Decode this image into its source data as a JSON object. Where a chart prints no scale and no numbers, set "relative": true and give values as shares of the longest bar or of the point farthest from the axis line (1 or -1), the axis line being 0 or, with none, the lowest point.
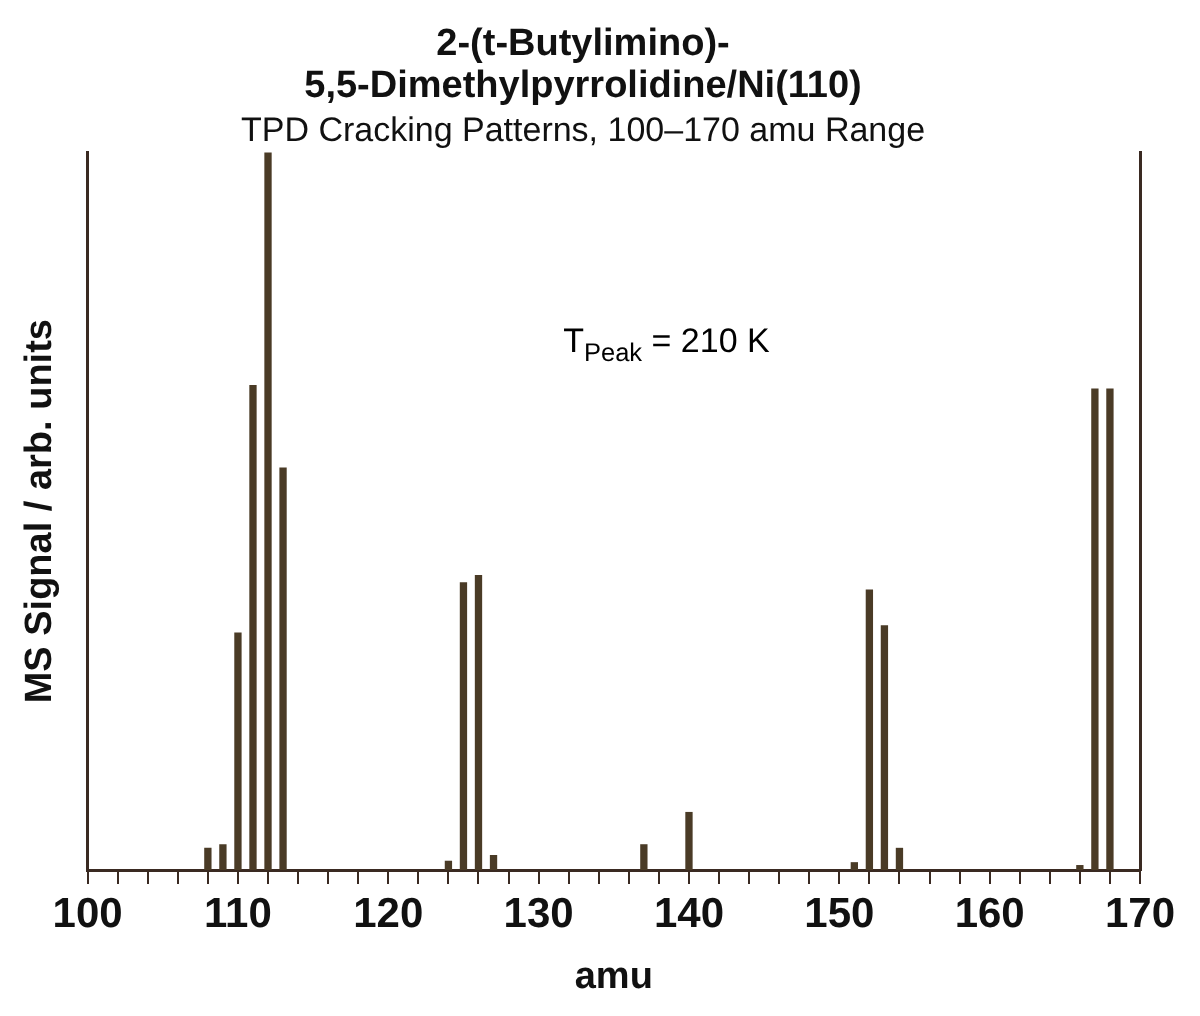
{
  "chart_data": {
    "type": "bar",
    "title": "2-(t-Butylimino)-\n5,5-Dimethylpyrrolidine/Ni(110)",
    "subtitle": "TPD Cracking Patterns, 100–170 amu Range",
    "xlabel": "amu",
    "ylabel": "MS Signal / arb. units",
    "annotations": [
      "T$_{Peak}$ = 210 K"
    ],
    "relative": true,
    "x": [
      108,
      109,
      110,
      111,
      112,
      113,
      124,
      125,
      126,
      127,
      137,
      140,
      151,
      152,
      153,
      154,
      166,
      167,
      168
    ],
    "values": [
      0.03,
      0.035,
      0.33,
      0.675,
      1,
      0.56,
      0.012,
      0.4,
      0.41,
      0.02,
      0.035,
      0.08,
      0.01,
      0.39,
      0.34,
      0.03,
      0.006,
      0.67,
      0.67
    ],
    "color": "#4a3b26",
    "xlim": [
      100,
      170
    ],
    "xticks": [
      100,
      {
        "value": 102,
        "label": null
      },
      {
        "value": 104,
        "label": null
      },
      {
        "value": 106,
        "label": null
      },
      {
        "value": 108,
        "label": null
      },
      110,
      {
        "value": 112,
        "label": null
      },
      {
        "value": 114,
        "label": null
      },
      {
        "value": 116,
        "label": null
      },
      {
        "value": 118,
        "label": null
      },
      120,
      {
        "value": 122,
        "label": null
      },
      {
        "value": 124,
        "label": null
      },
      {
        "value": 126,
        "label": null
      },
      {
        "value": 128,
        "label": null
      },
      130,
      {
        "value": 132,
        "label": null
      },
      {
        "value": 134,
        "label": null
      },
      {
        "value": 136,
        "label": null
      },
      {
        "value": 138,
        "label": null
      },
      140,
      {
        "value": 142,
        "label": null
      },
      {
        "value": 144,
        "label": null
      },
      {
        "value": 146,
        "label": null
      },
      {
        "value": 148,
        "label": null
      },
      150,
      {
        "value": 152,
        "label": null
      },
      {
        "value": 154,
        "label": null
      },
      {
        "value": 156,
        "label": null
      },
      {
        "value": 158,
        "label": null
      },
      160,
      {
        "value": 162,
        "label": null
      },
      {
        "value": 164,
        "label": null
      },
      {
        "value": 166,
        "label": null
      },
      {
        "value": 168,
        "label": null
      },
      170
    ]
  }
}
